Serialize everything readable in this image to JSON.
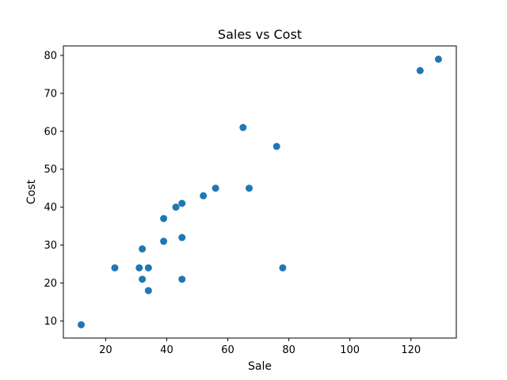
{
  "chart_data": {
    "type": "scatter",
    "title": "Sales vs Cost",
    "xlabel": "Sale",
    "ylabel": "Cost",
    "xlim": [
      6.15,
      134.85
    ],
    "ylim": [
      5.5,
      82.5
    ],
    "xticks": [
      20,
      40,
      60,
      80,
      100,
      120
    ],
    "yticks": [
      10,
      20,
      30,
      40,
      50,
      60,
      70,
      80
    ],
    "grid": false,
    "color": "#1f77b4",
    "points": [
      {
        "x": 12,
        "y": 9
      },
      {
        "x": 23,
        "y": 24
      },
      {
        "x": 31,
        "y": 24
      },
      {
        "x": 32,
        "y": 29
      },
      {
        "x": 32,
        "y": 21
      },
      {
        "x": 34,
        "y": 24
      },
      {
        "x": 34,
        "y": 18
      },
      {
        "x": 39,
        "y": 37
      },
      {
        "x": 39,
        "y": 31
      },
      {
        "x": 43,
        "y": 40
      },
      {
        "x": 45,
        "y": 41
      },
      {
        "x": 45,
        "y": 32
      },
      {
        "x": 45,
        "y": 21
      },
      {
        "x": 52,
        "y": 43
      },
      {
        "x": 56,
        "y": 45
      },
      {
        "x": 65,
        "y": 61
      },
      {
        "x": 67,
        "y": 45
      },
      {
        "x": 76,
        "y": 56
      },
      {
        "x": 78,
        "y": 24
      },
      {
        "x": 123,
        "y": 76
      },
      {
        "x": 129,
        "y": 79
      }
    ]
  }
}
